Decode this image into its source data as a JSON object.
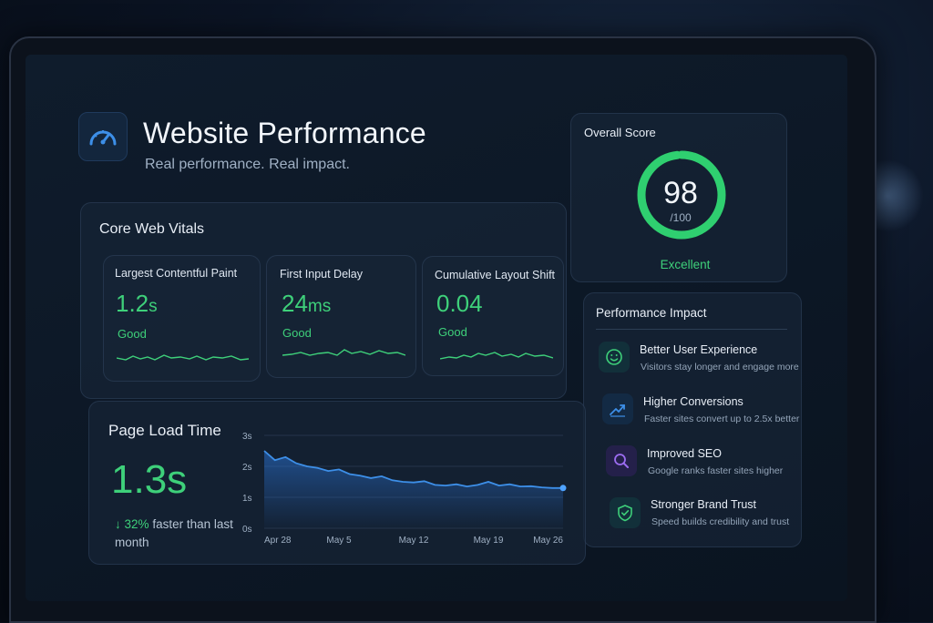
{
  "header": {
    "title": "Website Performance",
    "subtitle": "Real performance. Real impact.",
    "icon": "speedometer-icon"
  },
  "core_web_vitals": {
    "title": "Core Web Vitals",
    "metrics": [
      {
        "label": "Largest Contentful Paint",
        "value": "1.2",
        "unit": "s",
        "status": "Good"
      },
      {
        "label": "First Input Delay",
        "value": "24",
        "unit": "ms",
        "status": "Good"
      },
      {
        "label": "Cumulative Layout Shift",
        "value": "0.04",
        "unit": "",
        "status": "Good"
      }
    ]
  },
  "overall_score": {
    "title": "Overall Score",
    "score": "98",
    "max": "/100",
    "fraction": 0.98,
    "label": "Excellent"
  },
  "performance_impact": {
    "title": "Performance Impact",
    "items": [
      {
        "icon": "smiley-icon",
        "title": "Better User Experience",
        "desc": "Visitors stay longer and engage more",
        "color": "#3ed07a"
      },
      {
        "icon": "trend-up-icon",
        "title": "Higher Conversions",
        "desc": "Faster sites convert up to 2.5x better",
        "color": "#3d8fe8"
      },
      {
        "icon": "search-icon",
        "title": "Improved SEO",
        "desc": "Google ranks faster sites higher",
        "color": "#9b6cf0"
      },
      {
        "icon": "shield-check-icon",
        "title": "Stronger Brand Trust",
        "desc": "Speed builds credibility and trust",
        "color": "#3ed07a"
      }
    ]
  },
  "page_load": {
    "title": "Page Load Time",
    "value": "1.3s",
    "arrow": "↓",
    "percent": "32%",
    "compare_text": "faster than last month"
  },
  "colors": {
    "accent_green": "#3ed07a",
    "accent_blue": "#3d8fe8"
  },
  "chart_data": {
    "type": "area",
    "title": "",
    "xlabel": "",
    "ylabel": "",
    "x_tick_labels": [
      "Apr 28",
      "May 5",
      "May 12",
      "May 19",
      "May 26"
    ],
    "y_tick_labels": [
      "0s",
      "1s",
      "2s",
      "3s"
    ],
    "ylim": [
      0,
      3
    ],
    "x": [
      0,
      1,
      2,
      3,
      4,
      5,
      6,
      7,
      8,
      9,
      10,
      11,
      12,
      13,
      14,
      15,
      16,
      17,
      18,
      19,
      20,
      21,
      22,
      23,
      24,
      25,
      26,
      27,
      28
    ],
    "series": [
      {
        "values": [
          2.5,
          2.2,
          2.3,
          2.1,
          2.0,
          1.95,
          1.85,
          1.9,
          1.75,
          1.7,
          1.62,
          1.68,
          1.55,
          1.5,
          1.48,
          1.52,
          1.4,
          1.38,
          1.42,
          1.35,
          1.4,
          1.5,
          1.38,
          1.42,
          1.35,
          1.36,
          1.32,
          1.3,
          1.3
        ]
      }
    ],
    "grid": true
  }
}
